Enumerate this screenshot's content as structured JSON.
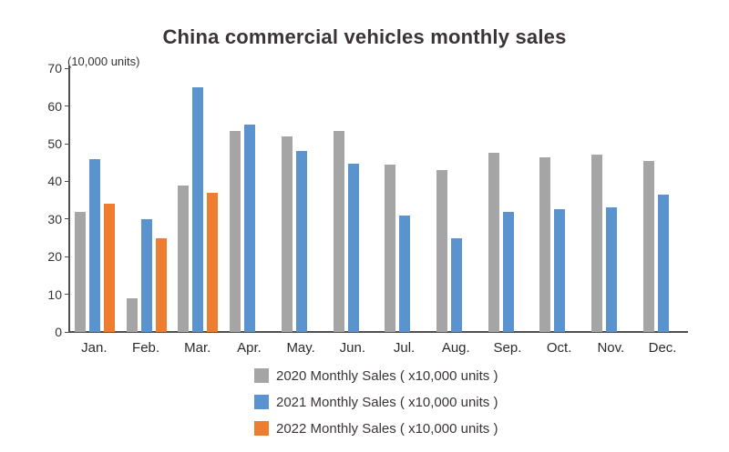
{
  "title": "China commercial vehicles monthly sales",
  "axis_unit_label": "(10,000 units)",
  "chart_data": {
    "type": "bar",
    "categories": [
      "Jan.",
      "Feb.",
      "Mar.",
      "Apr.",
      "May.",
      "Jun.",
      "Jul.",
      "Aug.",
      "Sep.",
      "Oct.",
      "Nov.",
      "Dec."
    ],
    "series": [
      {
        "name": "2020 Monthly Sales ( x10,000 units )",
        "color": "#a5a5a5",
        "values": [
          32,
          9,
          39,
          53.5,
          52,
          53.5,
          44.5,
          43,
          47.5,
          46.5,
          47,
          45.5
        ]
      },
      {
        "name": "2021 Monthly Sales ( x10,000 units )",
        "color": "#5b93ce",
        "values": [
          46,
          30,
          65,
          55,
          48,
          44.8,
          31,
          25,
          32,
          32.5,
          33,
          36.5
        ]
      },
      {
        "name": "2022 Monthly Sales ( x10,000 units )",
        "color": "#ed7d31",
        "values": [
          34,
          25,
          37,
          null,
          null,
          null,
          null,
          null,
          null,
          null,
          null,
          null
        ]
      }
    ],
    "ylabel": "(10,000 units)",
    "xlabel": "",
    "ylim": [
      0,
      70
    ],
    "yticks": [
      0,
      10,
      20,
      30,
      40,
      50,
      60,
      70
    ],
    "grid": false,
    "legend_position": "bottom-center"
  }
}
